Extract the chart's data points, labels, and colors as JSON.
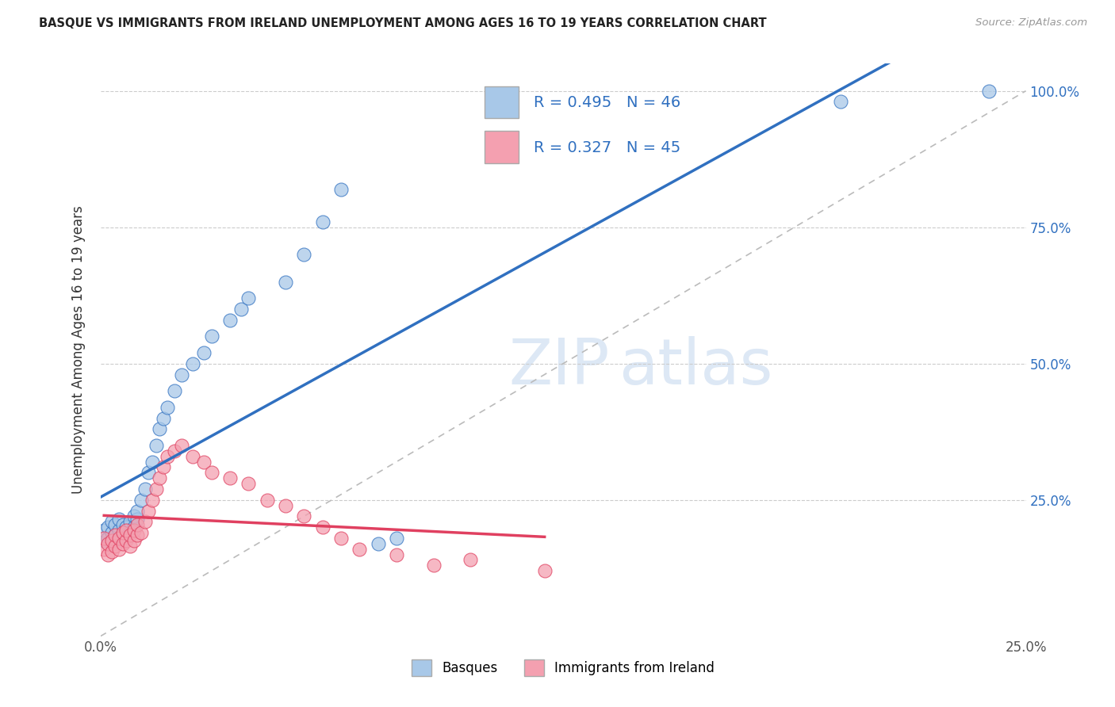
{
  "title": "BASQUE VS IMMIGRANTS FROM IRELAND UNEMPLOYMENT AMONG AGES 16 TO 19 YEARS CORRELATION CHART",
  "source": "Source: ZipAtlas.com",
  "ylabel": "Unemployment Among Ages 16 to 19 years",
  "xlim": [
    0.0,
    0.25
  ],
  "ylim": [
    0.0,
    1.05
  ],
  "legend_labels": [
    "Basques",
    "Immigrants from Ireland"
  ],
  "r_basque": 0.495,
  "n_basque": 46,
  "r_ireland": 0.327,
  "n_ireland": 45,
  "blue_color": "#a8c8e8",
  "pink_color": "#f4a0b0",
  "blue_line_color": "#3070c0",
  "pink_line_color": "#e04060",
  "title_color": "#222222",
  "watermark_color": "#dde8f5",
  "grid_color": "#cccccc",
  "basque_x": [
    0.001,
    0.001,
    0.002,
    0.002,
    0.003,
    0.003,
    0.003,
    0.004,
    0.004,
    0.005,
    0.005,
    0.005,
    0.006,
    0.006,
    0.007,
    0.007,
    0.008,
    0.008,
    0.009,
    0.009,
    0.01,
    0.01,
    0.011,
    0.012,
    0.013,
    0.014,
    0.015,
    0.016,
    0.017,
    0.018,
    0.02,
    0.022,
    0.025,
    0.028,
    0.03,
    0.035,
    0.038,
    0.04,
    0.05,
    0.055,
    0.06,
    0.065,
    0.075,
    0.08,
    0.2,
    0.24
  ],
  "basque_y": [
    0.175,
    0.195,
    0.18,
    0.2,
    0.17,
    0.19,
    0.21,
    0.185,
    0.205,
    0.175,
    0.195,
    0.215,
    0.185,
    0.205,
    0.18,
    0.2,
    0.19,
    0.21,
    0.2,
    0.22,
    0.215,
    0.23,
    0.25,
    0.27,
    0.3,
    0.32,
    0.35,
    0.38,
    0.4,
    0.42,
    0.45,
    0.48,
    0.5,
    0.52,
    0.55,
    0.58,
    0.6,
    0.62,
    0.65,
    0.7,
    0.76,
    0.82,
    0.17,
    0.18,
    0.98,
    1.0
  ],
  "ireland_x": [
    0.001,
    0.001,
    0.002,
    0.002,
    0.003,
    0.003,
    0.004,
    0.004,
    0.005,
    0.005,
    0.006,
    0.006,
    0.007,
    0.007,
    0.008,
    0.008,
    0.009,
    0.009,
    0.01,
    0.01,
    0.011,
    0.012,
    0.013,
    0.014,
    0.015,
    0.016,
    0.017,
    0.018,
    0.02,
    0.022,
    0.025,
    0.028,
    0.03,
    0.035,
    0.04,
    0.045,
    0.05,
    0.055,
    0.06,
    0.065,
    0.07,
    0.08,
    0.09,
    0.1,
    0.12
  ],
  "ireland_y": [
    0.16,
    0.18,
    0.15,
    0.17,
    0.155,
    0.175,
    0.165,
    0.185,
    0.16,
    0.18,
    0.17,
    0.19,
    0.175,
    0.195,
    0.165,
    0.185,
    0.175,
    0.195,
    0.185,
    0.205,
    0.19,
    0.21,
    0.23,
    0.25,
    0.27,
    0.29,
    0.31,
    0.33,
    0.34,
    0.35,
    0.33,
    0.32,
    0.3,
    0.29,
    0.28,
    0.25,
    0.24,
    0.22,
    0.2,
    0.18,
    0.16,
    0.15,
    0.13,
    0.14,
    0.12
  ]
}
